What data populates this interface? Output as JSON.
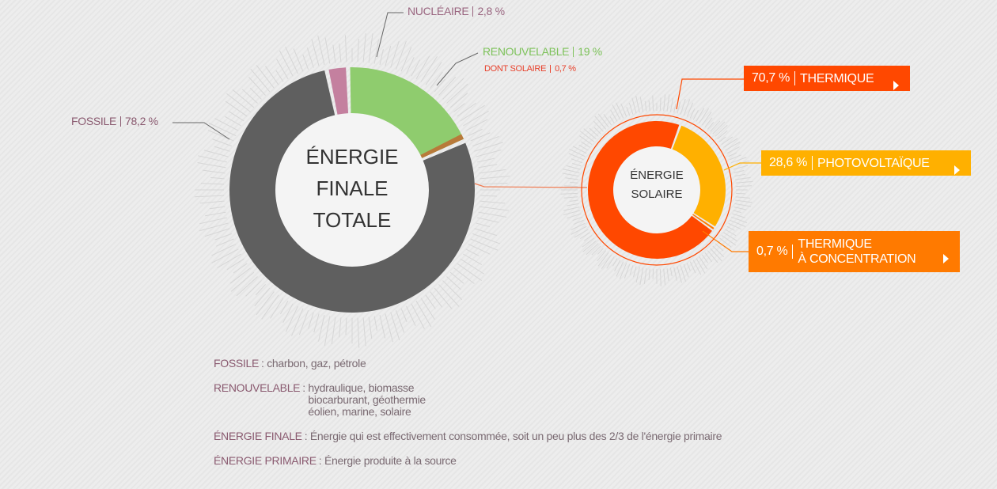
{
  "chart_data": [
    {
      "type": "donut",
      "title_lines": [
        "ÉNERGIE",
        "FINALE",
        "TOTALE"
      ],
      "categories": [
        "NUCLÉAIRE",
        "RENOUVELABLE",
        "FOSSILE"
      ],
      "values": [
        2.8,
        19,
        78.2
      ],
      "value_labels": [
        "2,8 %",
        "19 %",
        "78,2 %"
      ],
      "colors": [
        "#c4809f",
        "#8fcc6e",
        "#5f5f5f"
      ],
      "label_colors": [
        "#9a6680",
        "#7dc25a",
        "#8a5a70"
      ],
      "annotation": {
        "label": "DONT SOLAIRE",
        "value": 0.7,
        "value_label": "0,7 %",
        "color": "#b87a3a",
        "label_color": "#e8402a"
      }
    },
    {
      "type": "donut",
      "title_lines": [
        "ÉNERGIE",
        "SOLAIRE"
      ],
      "categories": [
        "THERMIQUE",
        "PHOTOVOLTAÏQUE",
        "THERMIQUE\nÀ CONCENTRATION"
      ],
      "values": [
        70.7,
        28.6,
        0.7
      ],
      "value_labels": [
        "70,7 %",
        "28,6 %",
        "0,7 %"
      ],
      "colors": [
        "#ff4800",
        "#ffb000",
        "#ff7a00"
      ]
    }
  ],
  "definitions": [
    {
      "term": "FOSSILE",
      "text": ": charbon, gaz, pétrole"
    },
    {
      "term": "RENOUVELABLE",
      "text": ": hydraulique, biomasse\n  biocarburant, géothermie\n  éolien, marine, solaire"
    },
    {
      "term": "ÉNERGIE FINALE",
      "text": ": Énergie qui est effectivement consommée, soit un peu plus des 2/3 de l'énergie primaire"
    },
    {
      "term": "ÉNERGIE PRIMAIRE",
      "text": ": Énergie produite à la source"
    }
  ]
}
